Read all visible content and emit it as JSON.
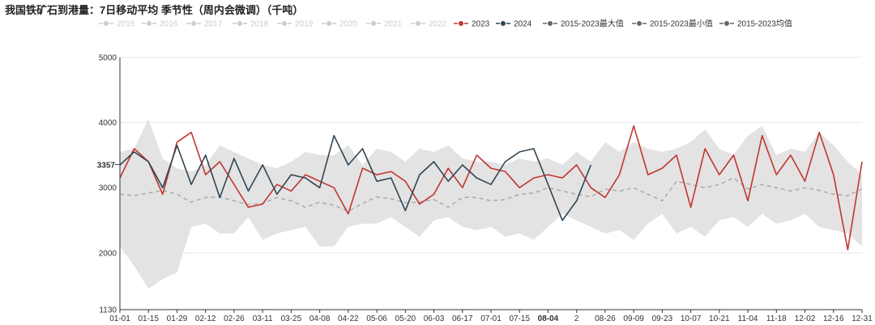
{
  "title": "我国铁矿石到港量：7日移动平均 季节性（周内会微调）（千吨）",
  "colors": {
    "band": "#e3e3e3",
    "s2023": "#c23531",
    "s2024": "#2f4554",
    "avg": "#aaaaaa",
    "legend_off": "#cccccc",
    "legend_on_text": "#333333",
    "grid": "#e8e8e8",
    "axis": "#333333"
  },
  "chart_data": {
    "type": "line",
    "title": "我国铁矿石到港量：7日移动平均 季节性（周内会微调）（千吨）",
    "xlabel": "",
    "ylabel": "",
    "ylim": [
      1130,
      5000
    ],
    "y_ticks": [
      "1130",
      "2000",
      "3000",
      "4000",
      "5000"
    ],
    "y_pointer_label": "3357",
    "x_pointer_label": "08-04",
    "x_ticks": [
      "01-01",
      "01-15",
      "01-29",
      "02-12",
      "02-26",
      "03-11",
      "03-25",
      "04-08",
      "04-22",
      "05-06",
      "05-20",
      "06-03",
      "06-17",
      "07-01",
      "07-15",
      "08-04",
      "2",
      "08-26",
      "09-09",
      "09-23",
      "10-07",
      "10-21",
      "11-04",
      "11-18",
      "12-02",
      "12-16",
      "12-31"
    ],
    "grid": true,
    "legend_position": "top",
    "legend": [
      {
        "name": "2015",
        "active": false
      },
      {
        "name": "2016",
        "active": false
      },
      {
        "name": "2017",
        "active": false
      },
      {
        "name": "2018",
        "active": false
      },
      {
        "name": "2019",
        "active": false
      },
      {
        "name": "2020",
        "active": false
      },
      {
        "name": "2021",
        "active": false
      },
      {
        "name": "2022",
        "active": false
      },
      {
        "name": "2023",
        "active": true,
        "color": "#c23531"
      },
      {
        "name": "2024",
        "active": true,
        "color": "#2f4554"
      },
      {
        "name": "2015-2023最大值",
        "active": true,
        "color": "#666666"
      },
      {
        "name": "2015-2023最小值",
        "active": true,
        "color": "#666666"
      },
      {
        "name": "2015-2023均值",
        "active": true,
        "color": "#666666"
      }
    ],
    "x_days": [
      0,
      7,
      14,
      21,
      28,
      35,
      42,
      49,
      56,
      63,
      70,
      77,
      84,
      91,
      98,
      105,
      112,
      119,
      126,
      133,
      140,
      147,
      154,
      161,
      168,
      175,
      182,
      189,
      196,
      203,
      210,
      217,
      224,
      231,
      238,
      245,
      252,
      259,
      266,
      273,
      280,
      287,
      294,
      301,
      308,
      315,
      322,
      329,
      336,
      343,
      350,
      357,
      364
    ],
    "series": [
      {
        "name": "2015-2023最大值",
        "values": [
          3550,
          3600,
          4050,
          3450,
          3300,
          3250,
          3350,
          3650,
          3550,
          3450,
          3350,
          3300,
          3400,
          3550,
          3500,
          3500,
          3650,
          3350,
          3600,
          3550,
          3400,
          3600,
          3550,
          3650,
          3450,
          3400,
          3400,
          3350,
          3450,
          3400,
          3450,
          3350,
          3550,
          3400,
          3700,
          3550,
          3700,
          3600,
          3550,
          3600,
          3700,
          3900,
          3600,
          3500,
          3800,
          3950,
          3500,
          3600,
          3550,
          3850,
          3650,
          3400,
          3200
        ]
      },
      {
        "name": "2015-2023最小值",
        "values": [
          2100,
          1800,
          1450,
          1600,
          1700,
          2400,
          2450,
          2300,
          2300,
          2550,
          2200,
          2300,
          2350,
          2400,
          2100,
          2100,
          2400,
          2450,
          2450,
          2550,
          2400,
          2250,
          2500,
          2550,
          2400,
          2350,
          2400,
          2250,
          2300,
          2200,
          2400,
          2600,
          2500,
          2400,
          2300,
          2350,
          2200,
          2450,
          2600,
          2300,
          2400,
          2250,
          2500,
          2550,
          2400,
          2600,
          2450,
          2500,
          2600,
          2400,
          2350,
          2300,
          2100
        ]
      },
      {
        "name": "2015-2023均值",
        "values": [
          2900,
          2880,
          2920,
          2960,
          2900,
          2780,
          2850,
          2860,
          2800,
          2740,
          2760,
          2850,
          2800,
          2700,
          2780,
          2730,
          2640,
          2760,
          2860,
          2830,
          2770,
          2780,
          2820,
          2700,
          2850,
          2850,
          2800,
          2820,
          2900,
          2920,
          3000,
          2950,
          2900,
          2860,
          2980,
          2950,
          3000,
          2900,
          2800,
          3100,
          3050,
          3000,
          3050,
          3150,
          2980,
          3050,
          3000,
          2950,
          3000,
          2960,
          2900,
          2880,
          2980
        ]
      },
      {
        "name": "2023",
        "values": [
          3150,
          3600,
          3400,
          2900,
          3700,
          3850,
          3200,
          3400,
          3050,
          2700,
          2750,
          3050,
          2950,
          3200,
          3100,
          3000,
          2600,
          3300,
          3200,
          3250,
          3100,
          2750,
          2900,
          3300,
          3000,
          3500,
          3300,
          3250,
          3000,
          3150,
          3200,
          3150,
          3350,
          3000,
          2850,
          3200,
          3950,
          3200,
          3300,
          3500,
          2700,
          3600,
          3200,
          3500,
          2800,
          3800,
          3200,
          3500,
          3100,
          3850,
          3200,
          2050,
          3400
        ]
      },
      {
        "name": "2024",
        "values": [
          3350,
          3550,
          3400,
          3000,
          3650,
          3050,
          3500,
          2850,
          3450,
          2950,
          3350,
          2900,
          3200,
          3150,
          3000,
          3800,
          3350,
          3600,
          3100,
          3150,
          2650,
          3200,
          3400,
          3100,
          3350,
          3150,
          3050,
          3400,
          3550,
          3600,
          3050,
          2500,
          2800,
          3350
        ]
      }
    ]
  }
}
